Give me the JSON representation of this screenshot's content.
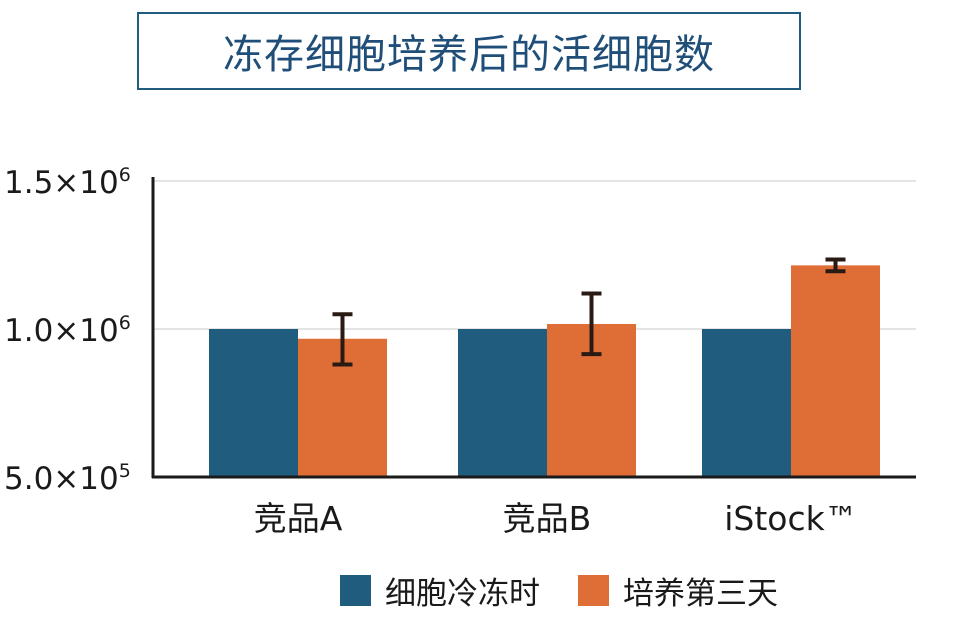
{
  "title": "冻存细胞培养后的活细胞数",
  "colors": {
    "series_frozen": "#1f5c7e",
    "series_day3": "#df6d36",
    "error_bar": "#2a1a14",
    "axis": "#1a1a1a",
    "grid": "#c8c8c8",
    "title_border": "#1f5c7e",
    "title_text": "#1f4e79"
  },
  "legend": [
    {
      "label": "细胞冷冻时",
      "color": "#1f5c7e"
    },
    {
      "label": "培养第三天",
      "color": "#df6d36"
    }
  ],
  "chart_data": {
    "type": "bar",
    "categories": [
      "竞品A",
      "竞品B",
      "iStock™"
    ],
    "series": [
      {
        "name": "细胞冷冻时",
        "values": [
          1000000,
          1000000,
          1000000
        ]
      },
      {
        "name": "培养第三天",
        "values": [
          967000,
          1017000,
          1215000
        ],
        "error": [
          [
            880000,
            1050000
          ],
          [
            915000,
            1120000
          ],
          [
            1195000,
            1235000
          ]
        ]
      }
    ],
    "ylim": [
      500000,
      1500000
    ],
    "yticks": [
      500000,
      1000000,
      1500000
    ],
    "ytick_labels": [
      {
        "mantissa": "5.0",
        "times": "×",
        "base": "10",
        "exp": "5"
      },
      {
        "mantissa": "1.0",
        "times": "×",
        "base": "10",
        "exp": "6"
      },
      {
        "mantissa": "1.5",
        "times": "×",
        "base": "10",
        "exp": "6"
      }
    ],
    "grid": true,
    "legend_position": "bottom"
  }
}
